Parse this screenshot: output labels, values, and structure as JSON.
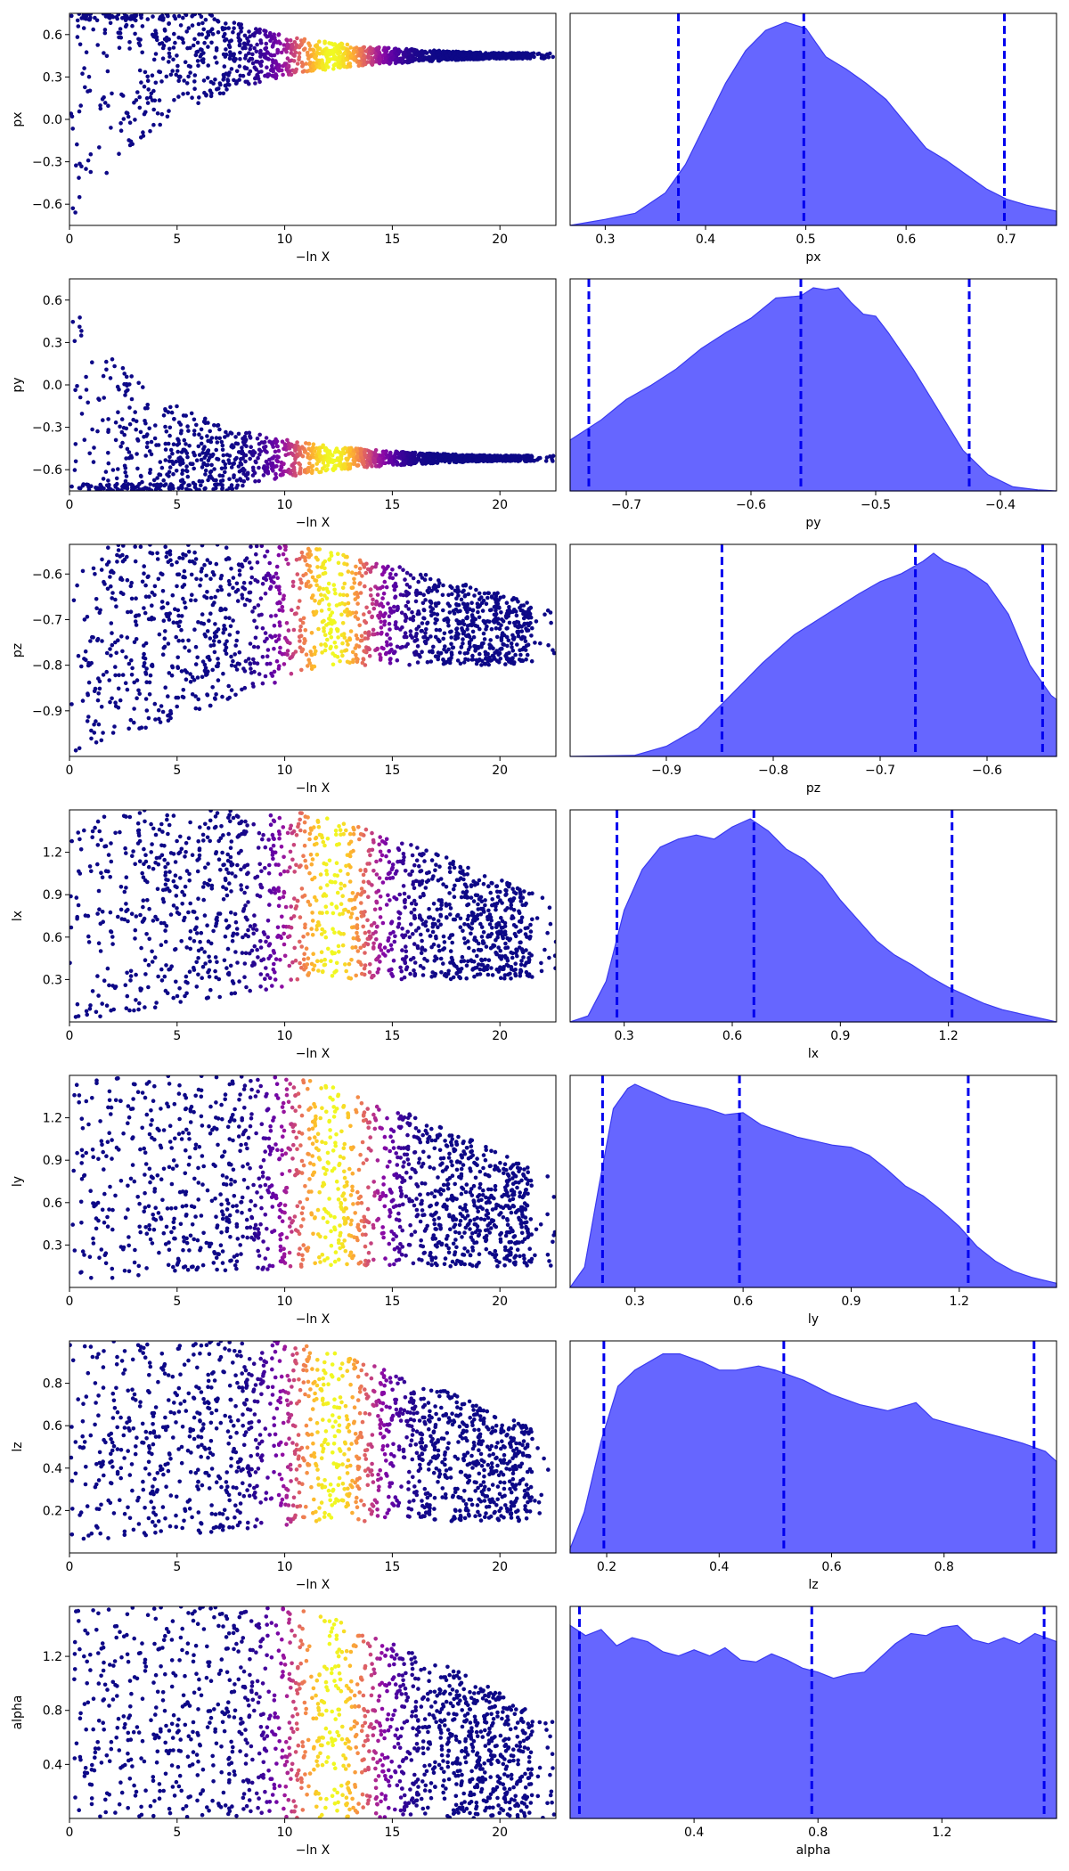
{
  "chart_data": [
    {
      "type": "scatter",
      "xlabel": "−ln X",
      "ylabel": "px",
      "xlim": [
        0,
        22.6
      ],
      "ylim": [
        -0.75,
        0.75
      ],
      "x_ticks": [
        0,
        5,
        10,
        15,
        20
      ],
      "y_ticks": [
        -0.6,
        -0.3,
        0.0,
        0.3,
        0.6
      ],
      "y_tick_labels": [
        "−0.6",
        "−0.3",
        "0.0",
        "0.3",
        "0.6"
      ],
      "shape": "funnel",
      "funnel_center": 0.45,
      "funnel_spread": 0.2,
      "colormap": "plasma",
      "peak_x": 12.2
    },
    {
      "type": "area",
      "xlabel": "px",
      "xlim": [
        0.265,
        0.75
      ],
      "x_ticks": [
        0.3,
        0.4,
        0.5,
        0.6,
        0.7
      ],
      "x_tick_labels": [
        "0.3",
        "0.4",
        "0.5",
        "0.6",
        "0.7"
      ],
      "quantiles": [
        0.373,
        0.498,
        0.698
      ],
      "density": {
        "x": [
          0.265,
          0.3,
          0.33,
          0.36,
          0.38,
          0.4,
          0.42,
          0.44,
          0.46,
          0.48,
          0.5,
          0.51,
          0.52,
          0.53,
          0.54,
          0.56,
          0.58,
          0.6,
          0.62,
          0.64,
          0.66,
          0.68,
          0.7,
          0.72,
          0.75
        ],
        "y": [
          0.0,
          0.03,
          0.06,
          0.16,
          0.3,
          0.5,
          0.7,
          0.86,
          0.96,
          1.0,
          0.97,
          0.9,
          0.83,
          0.8,
          0.77,
          0.7,
          0.62,
          0.5,
          0.38,
          0.32,
          0.25,
          0.18,
          0.13,
          0.1,
          0.07
        ]
      }
    },
    {
      "type": "scatter",
      "xlabel": "−ln X",
      "ylabel": "py",
      "xlim": [
        0,
        22.6
      ],
      "ylim": [
        -0.75,
        0.75
      ],
      "x_ticks": [
        0,
        5,
        10,
        15,
        20
      ],
      "y_ticks": [
        -0.6,
        -0.3,
        0.0,
        0.3,
        0.6
      ],
      "y_tick_labels": [
        "−0.6",
        "−0.3",
        "0.0",
        "0.3",
        "0.6"
      ],
      "shape": "funnel",
      "funnel_center": -0.52,
      "funnel_spread": 0.18,
      "colormap": "plasma",
      "peak_x": 12.2
    },
    {
      "type": "area",
      "xlabel": "py",
      "xlim": [
        -0.745,
        -0.355
      ],
      "x_ticks": [
        -0.7,
        -0.6,
        -0.5,
        -0.4
      ],
      "x_tick_labels": [
        "−0.7",
        "−0.6",
        "−0.5",
        "−0.4"
      ],
      "quantiles": [
        -0.73,
        -0.56,
        -0.425
      ],
      "density": {
        "x": [
          -0.745,
          -0.72,
          -0.7,
          -0.68,
          -0.66,
          -0.64,
          -0.62,
          -0.6,
          -0.58,
          -0.56,
          -0.55,
          -0.54,
          -0.53,
          -0.52,
          -0.51,
          -0.5,
          -0.49,
          -0.47,
          -0.45,
          -0.43,
          -0.41,
          -0.39,
          -0.37,
          -0.355
        ],
        "y": [
          0.25,
          0.35,
          0.45,
          0.52,
          0.6,
          0.7,
          0.78,
          0.85,
          0.95,
          0.96,
          1.0,
          0.99,
          1.0,
          0.93,
          0.87,
          0.86,
          0.78,
          0.6,
          0.4,
          0.2,
          0.08,
          0.02,
          0.005,
          0.0
        ]
      }
    },
    {
      "type": "scatter",
      "xlabel": "−ln X",
      "ylabel": "pz",
      "xlim": [
        0,
        22.6
      ],
      "ylim": [
        -1.0,
        -0.535
      ],
      "x_ticks": [
        0,
        5,
        10,
        15,
        20
      ],
      "y_ticks": [
        -0.9,
        -0.8,
        -0.7,
        -0.6
      ],
      "y_tick_labels": [
        "−0.9",
        "−0.8",
        "−0.7",
        "−0.6"
      ],
      "shape": "cone",
      "cone_low_start": -1.0,
      "cone_low_end": -0.8,
      "cone_high": -0.535,
      "colormap": "plasma",
      "peak_x": 12.2
    },
    {
      "type": "area",
      "xlabel": "pz",
      "xlim": [
        -0.99,
        -0.535
      ],
      "x_ticks": [
        -0.9,
        -0.8,
        -0.7,
        -0.6
      ],
      "x_tick_labels": [
        "−0.9",
        "−0.8",
        "−0.7",
        "−0.6"
      ],
      "quantiles": [
        -0.848,
        -0.667,
        -0.548
      ],
      "density": {
        "x": [
          -0.99,
          -0.93,
          -0.9,
          -0.87,
          -0.84,
          -0.81,
          -0.78,
          -0.75,
          -0.72,
          -0.7,
          -0.68,
          -0.66,
          -0.65,
          -0.64,
          -0.62,
          -0.6,
          -0.58,
          -0.56,
          -0.54,
          -0.535
        ],
        "y": [
          0.0,
          0.005,
          0.05,
          0.14,
          0.3,
          0.46,
          0.6,
          0.7,
          0.8,
          0.86,
          0.9,
          0.96,
          1.0,
          0.96,
          0.92,
          0.85,
          0.7,
          0.45,
          0.3,
          0.28
        ]
      }
    },
    {
      "type": "scatter",
      "xlabel": "−ln X",
      "ylabel": "lx",
      "xlim": [
        0,
        22.6
      ],
      "ylim": [
        0.0,
        1.5
      ],
      "x_ticks": [
        0,
        5,
        10,
        15,
        20
      ],
      "y_ticks": [
        0.3,
        0.6,
        0.9,
        1.2
      ],
      "y_tick_labels": [
        "0.3",
        "0.6",
        "0.9",
        "1.2"
      ],
      "shape": "cone",
      "cone_low_start": 0.0,
      "cone_low_end": 0.3,
      "cone_high": 1.5,
      "colormap": "plasma",
      "peak_x": 12.2
    },
    {
      "type": "area",
      "xlabel": "lx",
      "xlim": [
        0.15,
        1.5
      ],
      "x_ticks": [
        0.3,
        0.6,
        0.9,
        1.2
      ],
      "x_tick_labels": [
        "0.3",
        "0.6",
        "0.9",
        "1.2"
      ],
      "quantiles": [
        0.28,
        0.66,
        1.21
      ],
      "density": {
        "x": [
          0.15,
          0.2,
          0.25,
          0.3,
          0.35,
          0.4,
          0.45,
          0.5,
          0.55,
          0.6,
          0.65,
          0.7,
          0.75,
          0.8,
          0.85,
          0.9,
          0.95,
          1.0,
          1.05,
          1.1,
          1.15,
          1.2,
          1.25,
          1.3,
          1.35,
          1.4,
          1.45,
          1.5
        ],
        "y": [
          0.0,
          0.03,
          0.2,
          0.55,
          0.75,
          0.86,
          0.9,
          0.92,
          0.9,
          0.96,
          1.0,
          0.94,
          0.85,
          0.8,
          0.72,
          0.6,
          0.5,
          0.4,
          0.33,
          0.28,
          0.22,
          0.17,
          0.13,
          0.09,
          0.06,
          0.04,
          0.02,
          0.0
        ]
      }
    },
    {
      "type": "scatter",
      "xlabel": "−ln X",
      "ylabel": "ly",
      "xlim": [
        0,
        22.6
      ],
      "ylim": [
        0.0,
        1.5
      ],
      "x_ticks": [
        0,
        5,
        10,
        15,
        20
      ],
      "y_ticks": [
        0.3,
        0.6,
        0.9,
        1.2
      ],
      "y_tick_labels": [
        "0.3",
        "0.6",
        "0.9",
        "1.2"
      ],
      "shape": "cone",
      "cone_low_start": 0.05,
      "cone_low_end": 0.15,
      "cone_high": 1.5,
      "colormap": "plasma",
      "peak_x": 12.2
    },
    {
      "type": "area",
      "xlabel": "ly",
      "xlim": [
        0.12,
        1.47
      ],
      "x_ticks": [
        0.3,
        0.6,
        0.9,
        1.2
      ],
      "x_tick_labels": [
        "0.3",
        "0.6",
        "0.9",
        "1.2"
      ],
      "quantiles": [
        0.21,
        0.59,
        1.225
      ],
      "density": {
        "x": [
          0.12,
          0.16,
          0.2,
          0.24,
          0.28,
          0.3,
          0.35,
          0.4,
          0.45,
          0.5,
          0.55,
          0.6,
          0.65,
          0.7,
          0.75,
          0.8,
          0.85,
          0.9,
          0.95,
          1.0,
          1.05,
          1.1,
          1.15,
          1.2,
          1.25,
          1.3,
          1.35,
          1.4,
          1.47
        ],
        "y": [
          0.0,
          0.1,
          0.5,
          0.88,
          0.98,
          1.0,
          0.96,
          0.92,
          0.9,
          0.88,
          0.85,
          0.86,
          0.8,
          0.77,
          0.74,
          0.72,
          0.7,
          0.69,
          0.65,
          0.58,
          0.5,
          0.45,
          0.38,
          0.3,
          0.2,
          0.13,
          0.08,
          0.05,
          0.02
        ]
      }
    },
    {
      "type": "scatter",
      "xlabel": "−ln X",
      "ylabel": "lz",
      "xlim": [
        0,
        22.6
      ],
      "ylim": [
        0.0,
        1.0
      ],
      "x_ticks": [
        0,
        5,
        10,
        15,
        20
      ],
      "y_ticks": [
        0.2,
        0.4,
        0.6,
        0.8
      ],
      "y_tick_labels": [
        "0.2",
        "0.4",
        "0.6",
        "0.8"
      ],
      "shape": "cone",
      "cone_low_start": 0.03,
      "cone_low_end": 0.15,
      "cone_high": 1.0,
      "colormap": "plasma",
      "peak_x": 12.2
    },
    {
      "type": "area",
      "xlabel": "lz",
      "xlim": [
        0.135,
        1.0
      ],
      "x_ticks": [
        0.2,
        0.4,
        0.6,
        0.8
      ],
      "x_tick_labels": [
        "0.2",
        "0.4",
        "0.6",
        "0.8"
      ],
      "quantiles": [
        0.195,
        0.515,
        0.96
      ],
      "density": {
        "x": [
          0.135,
          0.16,
          0.19,
          0.22,
          0.25,
          0.3,
          0.33,
          0.37,
          0.4,
          0.43,
          0.47,
          0.5,
          0.55,
          0.6,
          0.65,
          0.7,
          0.75,
          0.78,
          0.82,
          0.86,
          0.9,
          0.94,
          0.98,
          1.0
        ],
        "y": [
          0.02,
          0.2,
          0.55,
          0.82,
          0.9,
          0.98,
          0.98,
          0.94,
          0.9,
          0.9,
          0.92,
          0.9,
          0.85,
          0.78,
          0.73,
          0.7,
          0.74,
          0.66,
          0.63,
          0.6,
          0.57,
          0.54,
          0.5,
          0.45
        ]
      }
    },
    {
      "type": "scatter",
      "xlabel": "−ln X",
      "ylabel": "alpha",
      "xlim": [
        0,
        22.6
      ],
      "ylim": [
        0.0,
        1.57
      ],
      "x_ticks": [
        0,
        5,
        10,
        15,
        20
      ],
      "y_ticks": [
        0.4,
        0.8,
        1.2
      ],
      "y_tick_labels": [
        "0.4",
        "0.8",
        "1.2"
      ],
      "shape": "cone",
      "cone_low_start": 0.0,
      "cone_low_end": 0.0,
      "cone_high": 1.57,
      "colormap": "plasma",
      "peak_x": 12.2
    },
    {
      "type": "area",
      "xlabel": "alpha",
      "xlim": [
        0.0,
        1.57
      ],
      "x_ticks": [
        0.4,
        0.8,
        1.2
      ],
      "x_tick_labels": [
        "0.4",
        "0.8",
        "1.2"
      ],
      "quantiles": [
        0.03,
        0.78,
        1.53
      ],
      "density": {
        "x": [
          0.0,
          0.05,
          0.1,
          0.15,
          0.2,
          0.25,
          0.3,
          0.35,
          0.4,
          0.45,
          0.5,
          0.55,
          0.6,
          0.65,
          0.7,
          0.75,
          0.8,
          0.85,
          0.9,
          0.95,
          1.0,
          1.05,
          1.1,
          1.15,
          1.2,
          1.25,
          1.3,
          1.35,
          1.4,
          1.45,
          1.5,
          1.57
        ],
        "y": [
          0.95,
          0.9,
          0.93,
          0.85,
          0.89,
          0.87,
          0.82,
          0.8,
          0.83,
          0.8,
          0.84,
          0.78,
          0.77,
          0.81,
          0.78,
          0.74,
          0.72,
          0.69,
          0.71,
          0.72,
          0.79,
          0.86,
          0.91,
          0.9,
          0.94,
          0.95,
          0.88,
          0.86,
          0.89,
          0.86,
          0.91,
          0.87
        ]
      }
    }
  ]
}
